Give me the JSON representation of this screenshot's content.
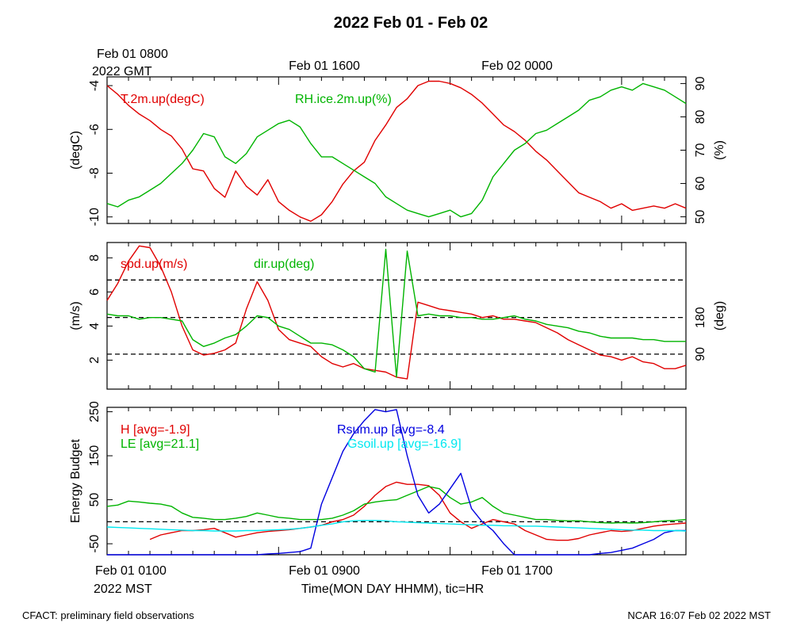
{
  "title": "2022 Feb 01 - Feb 02",
  "top_time_labels": {
    "gmt_start_line1": "Feb 01 0800",
    "gmt_start_line2": "2022 GMT",
    "gmt_mid": "Feb 01 1600",
    "gmt_end": "Feb 02 0000"
  },
  "bottom_time_labels": {
    "mst_start_line1": "Feb 01 0100",
    "mst_start_line2": "2022 MST",
    "mst_mid": "Feb 01 0900",
    "mst_end": "Feb 01 1700"
  },
  "xlabel": "Time(MON DAY HHMM), tic=HR",
  "footer": {
    "left": "CFACT: preliminary field observations",
    "right": "NCAR 16:07 Feb 02 2022 MST"
  },
  "colors": {
    "red": "#e00000",
    "green": "#00b400",
    "blue": "#0000e0",
    "cyan": "#00e8f0"
  },
  "chart_data": [
    {
      "type": "line",
      "panel": "top",
      "x_hours_mst": [
        0,
        0.5,
        1,
        1.5,
        2,
        2.5,
        3,
        3.5,
        4,
        4.5,
        5,
        5.5,
        6,
        6.5,
        7,
        7.5,
        8,
        8.5,
        9,
        9.5,
        10,
        10.5,
        11,
        11.5,
        12,
        12.5,
        13,
        13.5,
        14,
        14.5,
        15,
        15.5,
        16,
        16.5,
        17,
        17.5,
        18,
        18.5,
        19,
        19.5,
        20,
        20.5,
        21,
        21.5,
        22,
        22.5,
        23,
        23.5,
        24,
        24.5,
        25,
        25.5,
        26,
        26.5,
        27
      ],
      "x_range": [
        0,
        27
      ],
      "left_axis": {
        "label": "(degC)",
        "range": [
          -10.3,
          -3.6
        ],
        "ticks": [
          "-10",
          "-8",
          "-6",
          "-4"
        ],
        "tick_values": [
          -10,
          -8,
          -6,
          -4
        ]
      },
      "right_axis": {
        "label": "(%)",
        "range": [
          48,
          92
        ],
        "ticks": [
          "50",
          "60",
          "70",
          "80",
          "90"
        ],
        "tick_values": [
          50,
          60,
          70,
          80,
          90
        ]
      },
      "series": [
        {
          "name": "T.2m.up(degC)",
          "color": "#e00000",
          "axis": "left",
          "values": [
            -4.0,
            -4.4,
            -4.9,
            -5.3,
            -5.6,
            -6.0,
            -6.3,
            -6.9,
            -7.8,
            -7.9,
            -8.7,
            -9.1,
            -7.9,
            -8.6,
            -9.0,
            -8.3,
            -9.3,
            -9.7,
            -10.0,
            -10.2,
            -9.9,
            -9.3,
            -8.5,
            -7.9,
            -7.5,
            -6.5,
            -5.8,
            -5.0,
            -4.6,
            -4.0,
            -3.8,
            -3.8,
            -3.9,
            -4.1,
            -4.4,
            -4.8,
            -5.3,
            -5.8,
            -6.1,
            -6.5,
            -7.0,
            -7.4,
            -7.9,
            -8.4,
            -8.9,
            -9.1,
            -9.3,
            -9.6,
            -9.4,
            -9.7,
            -9.6,
            -9.5,
            -9.6,
            -9.4,
            -9.6
          ]
        },
        {
          "name": "RH.ice.2m.up(%)",
          "color": "#00b400",
          "axis": "right",
          "values": [
            54,
            53,
            55,
            56,
            58,
            60,
            63,
            66,
            70,
            75,
            74,
            68,
            66,
            69,
            74,
            76,
            78,
            79,
            77,
            72,
            68,
            68,
            66,
            64,
            62,
            60,
            56,
            54,
            52,
            51,
            50,
            51,
            52,
            50,
            51,
            55,
            62,
            66,
            70,
            72,
            75,
            76,
            78,
            80,
            82,
            85,
            86,
            88,
            89,
            88,
            90,
            89,
            88,
            86,
            84
          ]
        }
      ]
    },
    {
      "type": "line",
      "panel": "middle",
      "x_range": [
        0,
        27
      ],
      "left_axis": {
        "label": "(m/s)",
        "range": [
          0.3,
          8.9
        ],
        "ticks": [
          "2",
          "4",
          "6",
          "8"
        ],
        "tick_values": [
          2,
          4,
          6,
          8
        ]
      },
      "right_axis": {
        "label": "(deg)",
        "ticks": [
          "90",
          "180"
        ]
      },
      "reference_lines_ms": [
        2.35,
        4.5,
        6.7
      ],
      "series": [
        {
          "name": "spd.up(m/s)",
          "color": "#e00000",
          "axis": "left",
          "values": [
            5.5,
            6.5,
            7.8,
            8.7,
            8.6,
            7.5,
            6.0,
            4.0,
            2.6,
            2.3,
            2.4,
            2.6,
            3.0,
            5.0,
            6.6,
            5.5,
            3.8,
            3.2,
            3.0,
            2.8,
            2.2,
            1.8,
            1.6,
            1.8,
            1.5,
            1.4,
            1.3,
            1.0,
            0.9,
            5.4,
            5.2,
            5.0,
            4.9,
            4.8,
            4.7,
            4.5,
            4.6,
            4.4,
            4.4,
            4.3,
            4.2,
            3.9,
            3.6,
            3.2,
            2.9,
            2.6,
            2.3,
            2.2,
            2.0,
            2.2,
            1.9,
            1.8,
            1.5,
            1.5,
            1.7
          ]
        },
        {
          "name": "dir.up(deg)",
          "color": "#00b400",
          "axis": "left",
          "values": [
            4.7,
            4.6,
            4.6,
            4.4,
            4.5,
            4.5,
            4.4,
            4.3,
            3.2,
            2.8,
            3.0,
            3.3,
            3.5,
            4.0,
            4.6,
            4.5,
            4.0,
            3.8,
            3.4,
            3.0,
            3.0,
            2.9,
            2.6,
            2.2,
            1.5,
            1.3,
            8.5,
            1.0,
            8.4,
            4.6,
            4.7,
            4.6,
            4.6,
            4.5,
            4.5,
            4.4,
            4.4,
            4.5,
            4.6,
            4.4,
            4.3,
            4.1,
            4.0,
            3.9,
            3.7,
            3.6,
            3.4,
            3.3,
            3.3,
            3.3,
            3.2,
            3.2,
            3.1,
            3.1,
            3.1
          ]
        }
      ]
    },
    {
      "type": "line",
      "panel": "bottom",
      "x_range": [
        0,
        27
      ],
      "left_axis": {
        "label": "Energy Budget",
        "range": [
          -75,
          260
        ],
        "ticks": [
          "-50",
          "50",
          "150",
          "250"
        ],
        "tick_values": [
          -50,
          50,
          150,
          250
        ]
      },
      "reference_lines": [
        0
      ],
      "series": [
        {
          "name": "H",
          "legend": "H [avg=-1.9]",
          "color": "#e00000",
          "values": [
            null,
            null,
            null,
            null,
            -40,
            -30,
            -25,
            -20,
            -20,
            -18,
            -15,
            -25,
            -35,
            -30,
            -25,
            -22,
            -20,
            -18,
            -15,
            -12,
            -8,
            0,
            5,
            15,
            35,
            60,
            80,
            90,
            85,
            85,
            82,
            60,
            20,
            0,
            -15,
            -5,
            5,
            0,
            -5,
            -20,
            -30,
            -40,
            -42,
            -42,
            -38,
            -30,
            -25,
            -20,
            -22,
            -20,
            -15,
            -10,
            -7,
            -5,
            -3
          ]
        },
        {
          "name": "LE",
          "legend": "LE [avg=21.1]",
          "color": "#00b400",
          "values": [
            35,
            38,
            47,
            45,
            42,
            40,
            35,
            20,
            10,
            8,
            5,
            5,
            8,
            12,
            20,
            15,
            10,
            8,
            5,
            5,
            5,
            8,
            15,
            25,
            40,
            45,
            48,
            50,
            60,
            70,
            80,
            75,
            55,
            40,
            45,
            55,
            35,
            20,
            15,
            10,
            5,
            5,
            3,
            2,
            2,
            0,
            -2,
            -3,
            -2,
            -3,
            -2,
            0,
            2,
            3,
            5
          ]
        },
        {
          "name": "Rsum.up",
          "legend": "Rsum.up [avg=-8.4",
          "color": "#0000e0",
          "values": [
            -75,
            -75,
            -75,
            -78,
            -80,
            -80,
            -80,
            -80,
            -78,
            -78,
            -78,
            -78,
            -78,
            -77,
            -75,
            -73,
            -72,
            -70,
            -68,
            -60,
            40,
            100,
            160,
            200,
            230,
            255,
            250,
            255,
            150,
            60,
            20,
            40,
            75,
            110,
            30,
            0,
            -20,
            -50,
            -80,
            -80,
            -80,
            -80,
            -80,
            -80,
            -78,
            -75,
            -72,
            -70,
            -65,
            -60,
            -50,
            -40,
            -25,
            -20,
            -20
          ]
        },
        {
          "name": "Gsoil.up",
          "legend": "Gsoil.up [avg=-16.9]",
          "color": "#00e8f0",
          "values": [
            -12,
            -13,
            -14,
            -15,
            -16,
            -17,
            -18,
            -19,
            -20,
            -20,
            -21,
            -21,
            -21,
            -20,
            -20,
            -19,
            -18,
            -17,
            -15,
            -12,
            -8,
            -5,
            0,
            2,
            3,
            3,
            2,
            0,
            -1,
            -2,
            -3,
            -4,
            -5,
            -6,
            -7,
            -8,
            -8,
            -9,
            -9,
            -10,
            -10,
            -11,
            -12,
            -13,
            -14,
            -15,
            -16,
            -17,
            -18,
            -19,
            -19,
            -20,
            -20,
            -20,
            -21
          ]
        }
      ]
    }
  ]
}
